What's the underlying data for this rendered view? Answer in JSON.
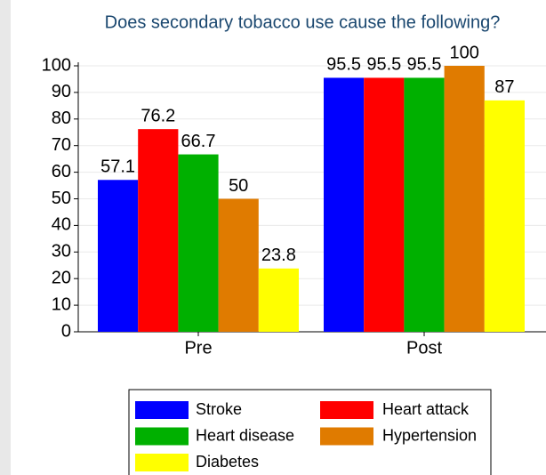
{
  "chart_data": {
    "type": "bar",
    "title": "Does secondary tobacco use cause the following?",
    "categories": [
      "Pre",
      "Post"
    ],
    "series": [
      {
        "name": "Stroke",
        "color": "#0000ff",
        "values": [
          57.1,
          95.5
        ]
      },
      {
        "name": "Heart attack",
        "color": "#ff0000",
        "values": [
          76.2,
          95.5
        ]
      },
      {
        "name": "Heart disease",
        "color": "#00b000",
        "values": [
          66.7,
          95.5
        ]
      },
      {
        "name": "Hypertension",
        "color": "#e07b00",
        "values": [
          50,
          100
        ]
      },
      {
        "name": "Diabetes",
        "color": "#ffff00",
        "values": [
          23.8,
          87
        ]
      }
    ],
    "ylim": [
      0,
      100
    ],
    "yticks": [
      0,
      10,
      20,
      30,
      40,
      50,
      60,
      70,
      80,
      90,
      100
    ],
    "grid": true,
    "legend": "bottom"
  }
}
